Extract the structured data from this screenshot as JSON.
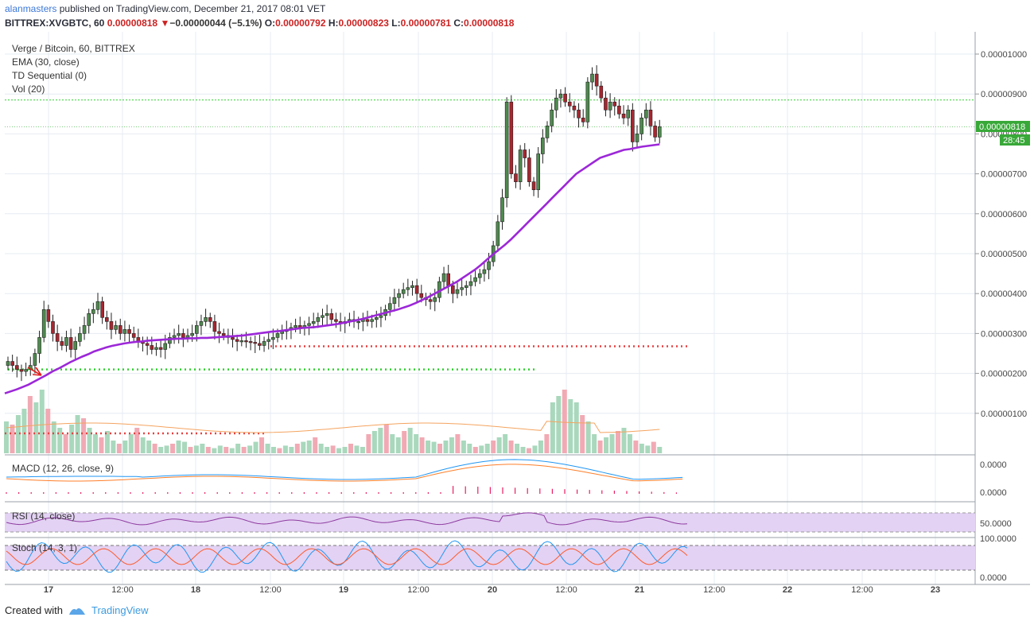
{
  "header": {
    "user": "alanmasters",
    "published_text": "published on TradingView.com, December 21, 2017 08:01 VET",
    "symbol": "BITTREX:XVGBTC, 60",
    "last": "0.00000818",
    "change_arrow": "▼",
    "change": "−0.00000044 (−5.1%)",
    "o_label": "O:",
    "o": "0.00000792",
    "h_label": "H:",
    "h": "0.00000823",
    "l_label": "L:",
    "l": "0.00000781",
    "c_label": "C:",
    "c": "0.00000818"
  },
  "legend": {
    "title": "Verge / Bitcoin, 60, BITTREX",
    "ema": "EMA (30, close)",
    "td": "TD Sequential (0)",
    "vol": "Vol (20)"
  },
  "indicator_labels": {
    "macd": "MACD (12, 26, close, 9)",
    "rsi": "RSI (14, close)",
    "stoch": "Stoch (14, 3, 1)"
  },
  "price_axis": {
    "ticks": [
      "0.00001000",
      "0.00000900",
      "0.00000800",
      "0.00000700",
      "0.00000600",
      "0.00000500",
      "0.00000400",
      "0.00000300",
      "0.00000200",
      "0.00000100"
    ],
    "current_price": "0.00000818",
    "countdown": "28:45"
  },
  "macd_axis": [
    "0.0000",
    "0.0000"
  ],
  "rsi_axis": [
    "50.0000"
  ],
  "stoch_axis": [
    "100.0000",
    "0.0000"
  ],
  "time_axis": [
    "17",
    "12:00",
    "18",
    "12:00",
    "19",
    "12:00",
    "20",
    "12:00",
    "21",
    "12:00",
    "22",
    "12:00",
    "23"
  ],
  "footer": {
    "created_with": "Created with",
    "brand": "TradingView"
  },
  "colors": {
    "up": "#4e8a4e",
    "down": "#a8262f",
    "ema": "#9c27d8",
    "green_dots": "#30d030",
    "red_dots": "#e84040",
    "vol_up": "#a9d8bd",
    "vol_down": "#f1aab4",
    "vol_ma": "#f4a460",
    "macd": "#2196f3",
    "signal": "#ff7f2a",
    "hist": "#e91e63",
    "rsi": "#8e3aa0",
    "band": "#e3d2f3",
    "stoch_k": "#2196f3",
    "stoch_d": "#ff5a2a"
  },
  "chart_data": {
    "type": "candlestick",
    "symbol": "BITTREX:XVGBTC",
    "interval": "60",
    "x_start": "2017-12-16 14:00",
    "x_labels": [
      "17",
      "12:00",
      "18",
      "12:00",
      "19",
      "12:00",
      "20",
      "12:00",
      "21",
      "12:00",
      "22",
      "12:00",
      "23"
    ],
    "ylim": [
      0.0,
      1.1e-05
    ],
    "close": [
      2.3,
      2.2,
      2.1,
      2.05,
      2.1,
      2.2,
      2.5,
      2.9,
      3.6,
      3.3,
      3.0,
      2.8,
      2.7,
      2.9,
      2.6,
      2.8,
      3.0,
      3.2,
      3.5,
      3.6,
      3.8,
      3.4,
      3.3,
      3.1,
      3.2,
      3.0,
      3.1,
      3.0,
      2.9,
      2.8,
      2.75,
      2.7,
      2.6,
      2.65,
      2.6,
      2.75,
      2.9,
      2.95,
      3.0,
      2.9,
      2.95,
      3.0,
      3.2,
      3.3,
      3.4,
      3.3,
      3.05,
      3.0,
      2.95,
      2.9,
      2.85,
      2.8,
      2.82,
      2.8,
      2.78,
      2.75,
      2.7,
      2.8,
      2.85,
      2.9,
      3.0,
      3.05,
      3.1,
      3.15,
      3.2,
      3.15,
      3.2,
      3.25,
      3.3,
      3.4,
      3.45,
      3.5,
      3.35,
      3.3,
      3.25,
      3.3,
      3.35,
      3.3,
      3.3,
      3.35,
      3.3,
      3.35,
      3.4,
      3.45,
      3.6,
      3.75,
      3.9,
      4.0,
      4.1,
      4.15,
      4.2,
      4.0,
      3.9,
      3.85,
      3.8,
      3.9,
      4.3,
      4.5,
      4.2,
      4.0,
      4.1,
      4.15,
      4.2,
      4.3,
      4.4,
      4.5,
      4.6,
      4.8,
      5.2,
      5.8,
      6.4,
      8.8,
      7.0,
      6.8,
      7.6,
      7.4,
      6.8,
      6.6,
      7.5,
      7.9,
      8.2,
      8.6,
      8.9,
      9.0,
      8.8,
      8.7,
      8.6,
      8.4,
      8.3,
      9.3,
      9.5,
      9.2,
      8.9,
      8.6,
      8.8,
      8.7,
      8.5,
      8.4,
      8.6,
      7.8,
      8.0,
      8.4,
      8.6,
      8.2,
      7.92,
      8.18
    ],
    "ema30": [
      1.5,
      1.55,
      1.6,
      1.66,
      1.72,
      1.8,
      1.88,
      1.96,
      2.05,
      2.12,
      2.2,
      2.28,
      2.35,
      2.42,
      2.48,
      2.55,
      2.6,
      2.65,
      2.69,
      2.72,
      2.75,
      2.77,
      2.79,
      2.8,
      2.82,
      2.83,
      2.84,
      2.85,
      2.86,
      2.87,
      2.87,
      2.88,
      2.88,
      2.89,
      2.89,
      2.9,
      2.91,
      2.92,
      2.93,
      2.94,
      2.95,
      2.97,
      2.99,
      3.01,
      3.03,
      3.05,
      3.06,
      3.08,
      3.1,
      3.12,
      3.14,
      3.15,
      3.16,
      3.18,
      3.2,
      3.22,
      3.24,
      3.27,
      3.3,
      3.33,
      3.36,
      3.4,
      3.44,
      3.48,
      3.52,
      3.56,
      3.6,
      3.65,
      3.7,
      3.76,
      3.83,
      3.9,
      3.98,
      4.06,
      4.14,
      4.22,
      4.3,
      4.4,
      4.5,
      4.6,
      4.72,
      4.85,
      4.98,
      5.1,
      5.22,
      5.35,
      5.5,
      5.65,
      5.8,
      5.95,
      6.1,
      6.25,
      6.4,
      6.55,
      6.7,
      6.85,
      7.0,
      7.1,
      7.2,
      7.3,
      7.4,
      7.45,
      7.5,
      7.55,
      7.6,
      7.62,
      7.65,
      7.68,
      7.7,
      7.72,
      7.74
    ],
    "td_support_level": 2.1e-06,
    "td_resistance_levels": [
      2.68e-06,
      8.85e-06
    ],
    "volume_relative": [
      0.5,
      0.45,
      0.6,
      0.7,
      0.9,
      0.8,
      1.0,
      0.7,
      0.5,
      0.4,
      0.3,
      0.45,
      0.6,
      0.55,
      0.4,
      0.3,
      0.25,
      0.35,
      0.2,
      0.15,
      0.2,
      0.3,
      0.4,
      0.25,
      0.2,
      0.15,
      0.1,
      0.12,
      0.15,
      0.2,
      0.18,
      0.1,
      0.12,
      0.15,
      0.1,
      0.08,
      0.12,
      0.1,
      0.08,
      0.15,
      0.1,
      0.12,
      0.18,
      0.25,
      0.15,
      0.1,
      0.08,
      0.12,
      0.1,
      0.15,
      0.18,
      0.2,
      0.25,
      0.15,
      0.1,
      0.12,
      0.08,
      0.1,
      0.15,
      0.12,
      0.1,
      0.3,
      0.35,
      0.4,
      0.45,
      0.3,
      0.25,
      0.35,
      0.4,
      0.3,
      0.25,
      0.2,
      0.18,
      0.15,
      0.2,
      0.25,
      0.3,
      0.2,
      0.15,
      0.1,
      0.12,
      0.15,
      0.2,
      0.25,
      0.3,
      0.2,
      0.15,
      0.1,
      0.08,
      0.12,
      0.2,
      0.3,
      0.8,
      0.9,
      1.0,
      0.85,
      0.8,
      0.6,
      0.5,
      0.3,
      0.2,
      0.25,
      0.3,
      0.35,
      0.4,
      0.3,
      0.2,
      0.15,
      0.12,
      0.18,
      0.1
    ]
  }
}
